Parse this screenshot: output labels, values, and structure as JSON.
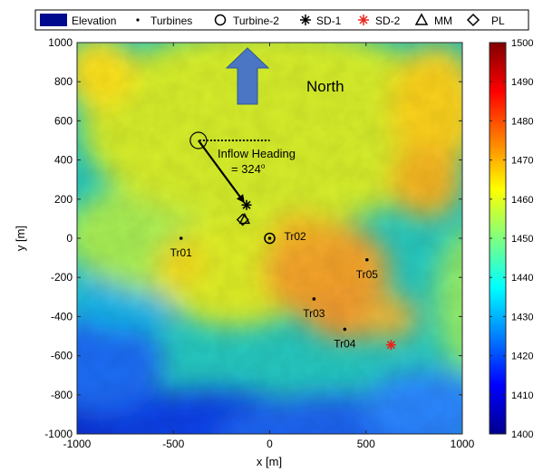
{
  "chart_data": {
    "type": "heatmap",
    "title": "",
    "xlabel": "x [m]",
    "ylabel": "y [m]",
    "xlim": [
      -1000,
      1000
    ],
    "ylim": [
      -1000,
      1000
    ],
    "x_ticks": [
      "-1000",
      "-500",
      "0",
      "500",
      "1000"
    ],
    "y_ticks": [
      "1000",
      "800",
      "600",
      "400",
      "200",
      "0",
      "-200",
      "-400",
      "-600",
      "-800",
      "-1000"
    ],
    "colorbar": {
      "range": [
        1400,
        1500
      ],
      "ticks": [
        "1500",
        "1490",
        "1480",
        "1470",
        "1460",
        "1450",
        "1440",
        "1430",
        "1420",
        "1410",
        "1400"
      ],
      "colormap": "jet"
    },
    "legend": {
      "placement": "top",
      "entries": [
        "Elevation",
        "Turbines",
        "Turbine-2",
        "SD-1",
        "SD-2",
        "MM",
        "PL"
      ]
    },
    "turbines": [
      {
        "label": "Tr01",
        "x": -460,
        "y": 0
      },
      {
        "label": "Tr02",
        "x": 0,
        "y": 0
      },
      {
        "label": "Tr03",
        "x": 230,
        "y": -310
      },
      {
        "label": "Tr04",
        "x": 390,
        "y": -465
      },
      {
        "label": "Tr05",
        "x": 505,
        "y": -110
      }
    ],
    "sd1": {
      "x": -120,
      "y": 170
    },
    "sd2": {
      "x": 630,
      "y": -545
    },
    "mm": {
      "x": -130,
      "y": 100
    },
    "pl": {
      "x": -140,
      "y": 95
    },
    "annotations": {
      "north": "North",
      "inflow_line1": "Inflow Heading",
      "inflow_line2": "= 324",
      "inflow_degree": "o",
      "inflow_circle": {
        "x": -370,
        "y": 500
      },
      "inflow_arrow_end": {
        "x": -130,
        "y": 180
      }
    },
    "colors": {
      "elevation_patch": "#000a8f",
      "sd2": "#e8241c",
      "north_arrow": "#4a76c4",
      "north_arrow_edge": "#2f5597"
    }
  }
}
